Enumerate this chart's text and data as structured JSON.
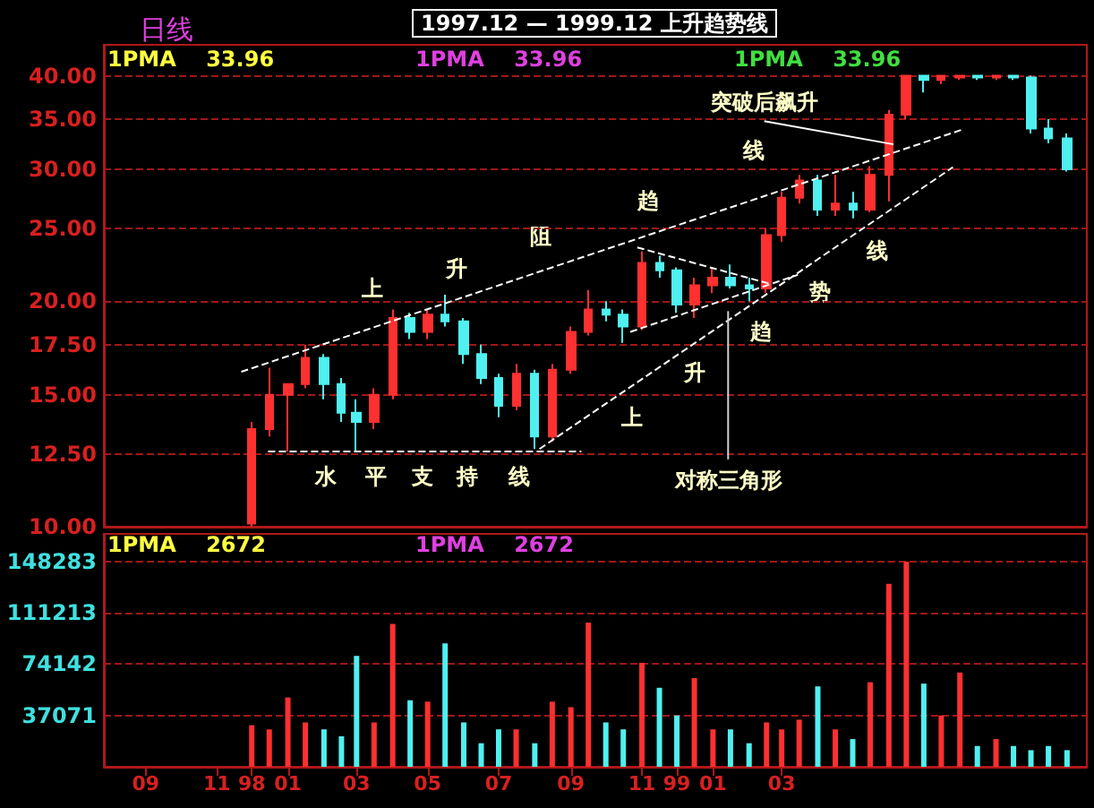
{
  "chart_data": [
    {
      "type": "candlestick",
      "title": "1997.12 — 1999.12 上升趋势线",
      "subtitle": "日线",
      "x": [
        "1997-12-01",
        "1997-12-16",
        "1998-01-01",
        "1998-01-16",
        "1998-02-01",
        "1998-02-16",
        "1998-03-01",
        "1998-03-16",
        "1998-04-01",
        "1998-04-16",
        "1998-05-01",
        "1998-05-16",
        "1998-06-01",
        "1998-06-16",
        "1998-07-01",
        "1998-07-16",
        "1998-08-01",
        "1998-08-16",
        "1998-09-01",
        "1998-09-16",
        "1998-10-01",
        "1998-10-16",
        "1998-11-01",
        "1998-11-16",
        "1998-12-01",
        "1998-12-16",
        "1999-01-01",
        "1999-01-16",
        "1999-02-01",
        "1999-02-16",
        "1999-03-01",
        "1999-03-16",
        "1999-04-01",
        "1999-04-16",
        "1999-05-01",
        "1999-05-16",
        "1999-06-01",
        "1999-06-16",
        "1999-07-01",
        "1999-07-16",
        "1999-08-01",
        "1999-08-16",
        "1999-09-01",
        "1999-09-16",
        "1999-10-01",
        "1999-10-16",
        "1999-11-01"
      ],
      "series": [
        {
          "type": "candlestick",
          "ohlc": [
            [
              10.1,
              13.8,
              10.0,
              13.5
            ],
            [
              13.5,
              16.3,
              13.2,
              15.0
            ],
            [
              15.0,
              15.5,
              12.6,
              15.5
            ],
            [
              15.5,
              17.5,
              15.3,
              16.8
            ],
            [
              16.8,
              17.0,
              14.8,
              15.5
            ],
            [
              15.5,
              15.8,
              13.8,
              14.2
            ],
            [
              14.2,
              14.8,
              12.6,
              13.8
            ],
            [
              13.8,
              15.3,
              13.5,
              15.0
            ],
            [
              15.0,
              19.5,
              14.8,
              19.0
            ],
            [
              19.0,
              19.3,
              17.8,
              18.2
            ],
            [
              18.2,
              19.5,
              17.8,
              19.2
            ],
            [
              19.2,
              20.4,
              18.5,
              18.8
            ],
            [
              18.8,
              19.0,
              16.5,
              17.0
            ],
            [
              17.0,
              17.5,
              15.5,
              15.8
            ],
            [
              15.8,
              16.0,
              14.0,
              14.5
            ],
            [
              14.5,
              16.5,
              14.3,
              16.0
            ],
            [
              16.0,
              16.2,
              12.7,
              13.2
            ],
            [
              13.2,
              16.5,
              13.0,
              16.2
            ],
            [
              16.2,
              18.5,
              16.0,
              18.2
            ],
            [
              18.2,
              20.7,
              18.0,
              19.5
            ],
            [
              19.5,
              20.0,
              18.8,
              19.2
            ],
            [
              19.2,
              19.5,
              17.6,
              18.5
            ],
            [
              18.5,
              23.3,
              18.3,
              22.5
            ],
            [
              22.5,
              23.0,
              21.5,
              22.0
            ],
            [
              22.0,
              22.2,
              19.3,
              19.8
            ],
            [
              19.8,
              21.5,
              19.0,
              21.0
            ],
            [
              21.0,
              22.2,
              20.5,
              21.5
            ],
            [
              21.5,
              22.4,
              20.8,
              21.0
            ],
            [
              21.0,
              21.5,
              20.0,
              20.8
            ],
            [
              20.8,
              25.0,
              20.5,
              24.5
            ],
            [
              24.5,
              28.0,
              24.0,
              27.5
            ],
            [
              27.5,
              29.5,
              27.0,
              29.0
            ],
            [
              29.0,
              29.5,
              26.0,
              26.5
            ],
            [
              26.5,
              29.5,
              26.0,
              27.0
            ],
            [
              27.0,
              28.0,
              25.8,
              26.5
            ],
            [
              26.5,
              30.3,
              26.3,
              29.5
            ],
            [
              29.5,
              36.0,
              27.2,
              35.5
            ],
            [
              35.5,
              40,
              35.0,
              40
            ],
            [
              40,
              40,
              38.0,
              39.5
            ],
            [
              39.5,
              40,
              39.0,
              40
            ],
            [
              39.8,
              40,
              39.5,
              40
            ],
            [
              40,
              40,
              39.5,
              39.8
            ],
            [
              39.8,
              40,
              39.5,
              40
            ],
            [
              40,
              40,
              39.5,
              39.8
            ],
            [
              39.8,
              40,
              33.5,
              34.0
            ],
            [
              34.0,
              35.0,
              32.5,
              33.0
            ],
            [
              33.0,
              33.5,
              29.8,
              30.0
            ]
          ],
          "colors": [
            "#ff3030",
            "#ff3030",
            "#ff3030",
            "#ff3030",
            "#50f0f0",
            "#50f0f0",
            "#50f0f0",
            "#ff3030",
            "#ff3030",
            "#50f0f0",
            "#ff3030",
            "#50f0f0",
            "#50f0f0",
            "#50f0f0",
            "#50f0f0",
            "#ff3030",
            "#50f0f0",
            "#ff3030",
            "#ff3030",
            "#ff3030",
            "#50f0f0",
            "#50f0f0",
            "#ff3030",
            "#50f0f0",
            "#50f0f0",
            "#ff3030",
            "#ff3030",
            "#50f0f0",
            "#50f0f0",
            "#ff3030",
            "#ff3030",
            "#ff3030",
            "#50f0f0",
            "#ff3030",
            "#50f0f0",
            "#ff3030",
            "#ff3030",
            "#ff3030",
            "#50f0f0",
            "#ff3030",
            "#ff3030",
            "#50f0f0",
            "#ff3030",
            "#50f0f0",
            "#50f0f0",
            "#50f0f0",
            "#50f0f0"
          ]
        },
        {
          "type": "line",
          "x": [
            "1997-11-22",
            "1999-08-03"
          ],
          "values": [
            16.1,
            33.9
          ],
          "color": "#ffffff",
          "line_style": "dashed"
        },
        {
          "type": "line",
          "x": [
            "1997-12-15",
            "1998-09-10"
          ],
          "values": [
            12.6,
            12.6
          ],
          "color": "#ffffff",
          "line_style": "dashed"
        },
        {
          "type": "line",
          "x": [
            "1998-08-05",
            "1999-07-26"
          ],
          "values": [
            12.7,
            30.2
          ],
          "color": "#ffffff",
          "line_style": "dashed"
        },
        {
          "type": "line",
          "x": [
            "1998-10-22",
            "1999-03-15"
          ],
          "values": [
            18.2,
            21.7
          ],
          "color": "#ffffff",
          "line_style": "dashed"
        },
        {
          "type": "line",
          "x": [
            "1998-10-28",
            "1999-02-19"
          ],
          "values": [
            23.6,
            21.1
          ],
          "color": "#ffffff",
          "line_style": "dashed"
        },
        {
          "type": "line",
          "x": [
            "1999-02-14",
            "1999-06-05"
          ],
          "values": [
            34.8,
            32.4
          ],
          "color": "#ffffff",
          "line_style": "solid"
        },
        {
          "type": "line",
          "x": [
            "1999-01-14",
            "1999-01-14"
          ],
          "values": [
            19.4,
            12.3
          ],
          "color": "#d0d0d0",
          "line_style": "solid"
        }
      ],
      "xlim": [
        "1997-07-27",
        "1999-11-18"
      ],
      "ylim": [
        10,
        44
      ],
      "log": true,
      "yticks": [
        {
          "value": 10,
          "label": "10.00"
        },
        {
          "value": 12.5,
          "label": "12.50"
        },
        {
          "value": 15,
          "label": "15.00"
        },
        {
          "value": 17.5,
          "label": "17.50"
        },
        {
          "value": 20,
          "label": "20.00"
        },
        {
          "value": 25,
          "label": "25.00"
        },
        {
          "value": 30,
          "label": "30.00"
        },
        {
          "value": 35,
          "label": "35.00"
        },
        {
          "value": 40,
          "label": "40.00"
        }
      ],
      "grid": "y",
      "tick_labels": "y",
      "annotations": [
        "1PMA    33.96",
        "1PMA    33.96",
        "1PMA    33.96",
        "上",
        "升",
        "阻",
        "趋",
        "线",
        "突破后飙升",
        "水",
        "平",
        "支",
        "持",
        "线",
        "上",
        "升",
        "趋",
        "势",
        "线",
        "对称三角形"
      ]
    },
    {
      "type": "bar",
      "x": [
        "1997-12-01",
        "1997-12-16",
        "1998-01-01",
        "1998-01-16",
        "1998-02-01",
        "1998-02-16",
        "1998-03-01",
        "1998-03-16",
        "1998-04-01",
        "1998-04-16",
        "1998-05-01",
        "1998-05-16",
        "1998-06-01",
        "1998-06-16",
        "1998-07-01",
        "1998-07-16",
        "1998-08-01",
        "1998-08-16",
        "1998-09-01",
        "1998-09-16",
        "1998-10-01",
        "1998-10-16",
        "1998-11-01",
        "1998-11-16",
        "1998-12-01",
        "1998-12-16",
        "1999-01-01",
        "1999-01-16",
        "1999-02-01",
        "1999-02-16",
        "1999-03-01",
        "1999-03-16",
        "1999-04-01",
        "1999-04-16",
        "1999-05-01",
        "1999-05-16",
        "1999-06-01",
        "1999-06-16",
        "1999-07-01",
        "1999-07-16",
        "1999-08-01",
        "1999-08-16",
        "1999-09-01",
        "1999-09-16",
        "1999-10-01",
        "1999-10-16",
        "1999-11-01"
      ],
      "values": [
        30000,
        27000,
        50000,
        32000,
        27000,
        22000,
        80000,
        32000,
        103000,
        48000,
        47000,
        89000,
        32000,
        17000,
        27000,
        27000,
        17000,
        47000,
        43000,
        104000,
        32000,
        27000,
        75000,
        57000,
        37000,
        64000,
        27000,
        27000,
        17000,
        32000,
        27000,
        34000,
        58000,
        27000,
        20000,
        61000,
        132000,
        148000,
        60000,
        37000,
        68000,
        15000,
        20000,
        15000,
        12000,
        15000,
        12000
      ],
      "colors": [
        "#ff3030",
        "#ff3030",
        "#ff3030",
        "#ff3030",
        "#50f0f0",
        "#50f0f0",
        "#50f0f0",
        "#ff3030",
        "#ff3030",
        "#50f0f0",
        "#ff3030",
        "#50f0f0",
        "#50f0f0",
        "#50f0f0",
        "#50f0f0",
        "#ff3030",
        "#50f0f0",
        "#ff3030",
        "#ff3030",
        "#ff3030",
        "#50f0f0",
        "#50f0f0",
        "#ff3030",
        "#50f0f0",
        "#50f0f0",
        "#ff3030",
        "#ff3030",
        "#50f0f0",
        "#50f0f0",
        "#ff3030",
        "#ff3030",
        "#ff3030",
        "#50f0f0",
        "#ff3030",
        "#50f0f0",
        "#ff3030",
        "#ff3030",
        "#ff3030",
        "#50f0f0",
        "#ff3030",
        "#ff3030",
        "#50f0f0",
        "#ff3030",
        "#50f0f0",
        "#50f0f0",
        "#50f0f0",
        "#50f0f0"
      ],
      "xlim": [
        "1997-07-27",
        "1999-11-18"
      ],
      "ylim": [
        0,
        168000
      ],
      "yticks": [
        37071,
        74142,
        111213,
        148283
      ],
      "xticks": [
        {
          "value": "1997-09",
          "label": "09"
        },
        {
          "value": "1997-11",
          "label": "11"
        },
        {
          "value": "1997-12-01",
          "label": "98"
        },
        {
          "value": "1998-01",
          "label": "01"
        },
        {
          "value": "1998-03",
          "label": "03"
        },
        {
          "value": "1998-05",
          "label": "05"
        },
        {
          "value": "1998-07",
          "label": "07"
        },
        {
          "value": "1998-09",
          "label": "09"
        },
        {
          "value": "1998-11",
          "label": "11"
        },
        {
          "value": "1998-12-01",
          "label": "99"
        },
        {
          "value": "1999-01",
          "label": "01"
        },
        {
          "value": "1999-03",
          "label": "03"
        }
      ],
      "grid": "y",
      "annotations": [
        "1PMA    2672",
        "1PMA    2672"
      ]
    }
  ]
}
